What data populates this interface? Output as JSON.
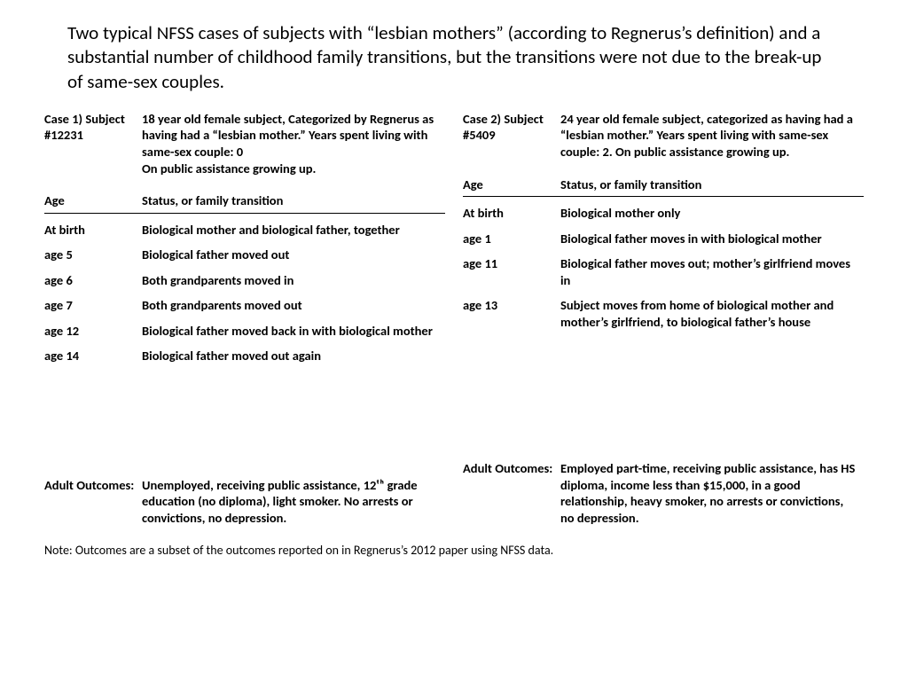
{
  "title": "Two typical NFSS cases of subjects with “lesbian mothers” (according to Regnerus’s definition) and a substantial number of childhood family transitions, but the transitions were not due to the break-up of same-sex couples.",
  "colHeaders": {
    "left": "Age",
    "right": "Status, or family transition"
  },
  "outcomeLabel": "Adult Outcomes:",
  "note": "Note: Outcomes are a subset of the outcomes reported on in Regnerus’s 2012 paper using NFSS data.",
  "cases": [
    {
      "idLabel": "Case 1) Subject #12231",
      "description": "18 year old female subject, Categorized by Regnerus as having had a “lesbian mother.” Years spent living with same-sex couple: 0\nOn public assistance growing up.",
      "rows": [
        {
          "age": "At birth",
          "status": "Biological mother and biological father, together"
        },
        {
          "age": "age 5",
          "status": "Biological father moved out"
        },
        {
          "age": "age 6",
          "status": "Both grandparents moved in"
        },
        {
          "age": "age 7",
          "status": "Both grandparents moved out"
        },
        {
          "age": "age 12",
          "status": "Biological father moved back in with biological mother"
        },
        {
          "age": "age 14",
          "status": "Biological father moved out again"
        }
      ],
      "outcome": "Unemployed, receiving public assistance, 12ᵗʰ grade education (no diploma), light smoker. No arrests or convictions, no depression."
    },
    {
      "idLabel": "Case 2) Subject #5409",
      "description": "24 year old female subject, categorized as having had a “lesbian mother.” Years spent living with same-sex couple: 2. On public assistance growing up.",
      "rows": [
        {
          "age": "At birth",
          "status": "Biological mother only"
        },
        {
          "age": "age 1",
          "status": "Biological father moves in with biological mother"
        },
        {
          "age": "age 11",
          "status": "Biological father moves out; mother’s girlfriend moves in"
        },
        {
          "age": "age 13",
          "status": "Subject moves from home of biological mother and mother’s girlfriend, to biological father’s house"
        }
      ],
      "outcome": "Employed part-time, receiving public assistance, has HS diploma, income less than $15,000, in a good relationship, heavy smoker, no arrests or convictions, no depression."
    }
  ],
  "style": {
    "background": "#ffffff",
    "text_color": "#000000",
    "title_fontsize": 21,
    "body_fontsize": 14.5,
    "note_fontsize": 14,
    "rule_color": "#000000"
  }
}
